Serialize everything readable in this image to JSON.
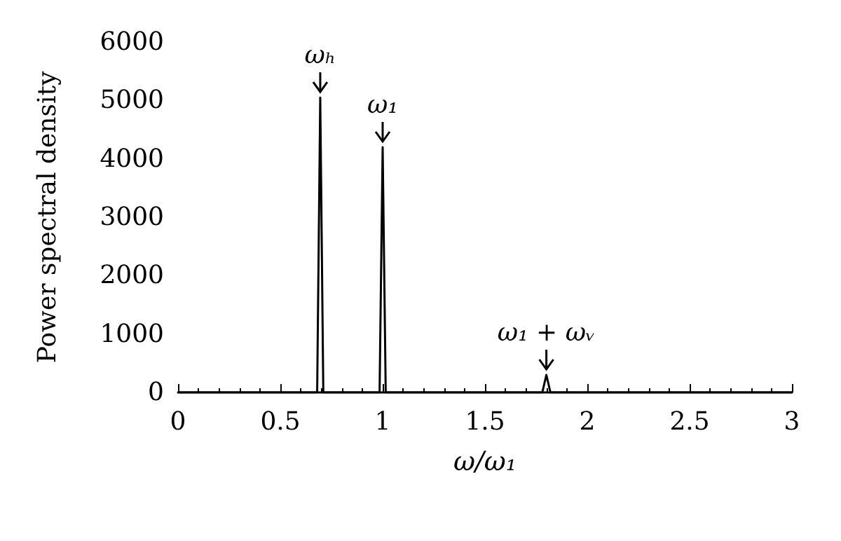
{
  "chart_data": {
    "type": "line",
    "xlabel": "ω/ω₁",
    "ylabel": "Power spectral density",
    "series": [
      {
        "color": "#000000",
        "x": [
          0,
          0.68,
          0.695,
          0.71,
          0.985,
          1.0,
          1.015,
          1.78,
          1.8,
          1.82,
          3
        ],
        "values": [
          0,
          0,
          5050,
          0,
          0,
          4200,
          0,
          0,
          300,
          0,
          0
        ]
      }
    ],
    "xlim": [
      0,
      3
    ],
    "xticks": [
      0,
      0.5,
      1,
      1.5,
      2,
      2.5,
      3
    ],
    "ylim": [
      0,
      6000
    ],
    "yticks": [
      0,
      1000,
      2000,
      3000,
      4000,
      5000,
      6000
    ],
    "grid": false,
    "marker": "none",
    "line_style": "solid",
    "annotations": [
      {
        "text": "ωₕ",
        "x": 0.695,
        "y": 5050
      },
      {
        "text": "ω₁",
        "x": 1.0,
        "y": 4200
      },
      {
        "text": "ω₁ + ωᵥ",
        "x": 1.8,
        "y": 300
      }
    ]
  }
}
